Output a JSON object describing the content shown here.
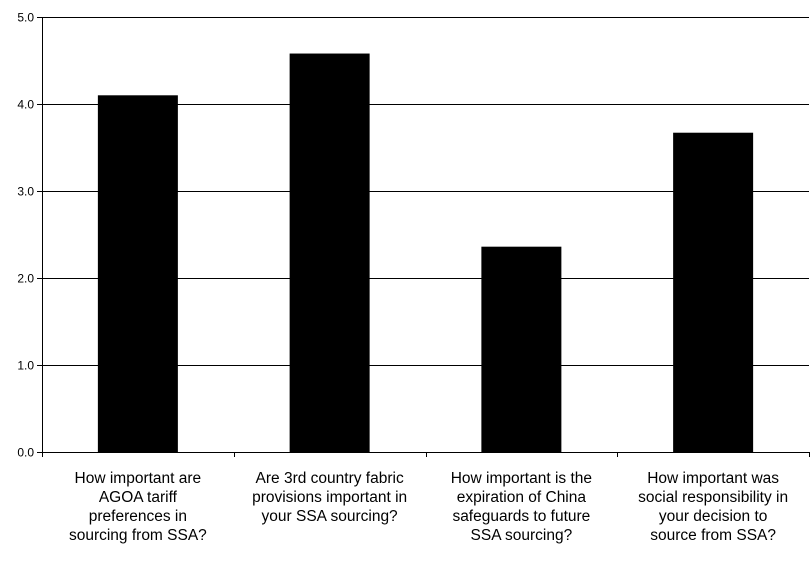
{
  "chart_data": {
    "type": "bar",
    "title": "",
    "xlabel": "",
    "ylabel": "",
    "categories": [
      "How important are AGOA tariff preferences in sourcing from SSA?",
      "Are 3rd country fabric provisions important in your SSA sourcing?",
      "How important is the expiration of China safeguards to future SSA sourcing?",
      "How important was social responsibility  in your decision to source from SSA?"
    ],
    "category_lines": [
      [
        "How important are",
        "AGOA tariff",
        "preferences in",
        "sourcing from SSA?"
      ],
      [
        "Are 3rd country fabric",
        "provisions important in",
        "your SSA sourcing?"
      ],
      [
        "How important is the",
        "expiration of China",
        "safeguards to future",
        "SSA sourcing?"
      ],
      [
        "How important was",
        "social responsibility  in",
        "your decision to",
        "source from SSA?"
      ]
    ],
    "values": [
      4.1,
      4.58,
      2.36,
      3.67
    ],
    "ylim": [
      0,
      5
    ],
    "yticks": [
      "0.0",
      "1.0",
      "2.0",
      "3.0",
      "4.0",
      "5.0"
    ],
    "grid": true,
    "bar_color": "#000000",
    "grid_color": "#000000"
  }
}
